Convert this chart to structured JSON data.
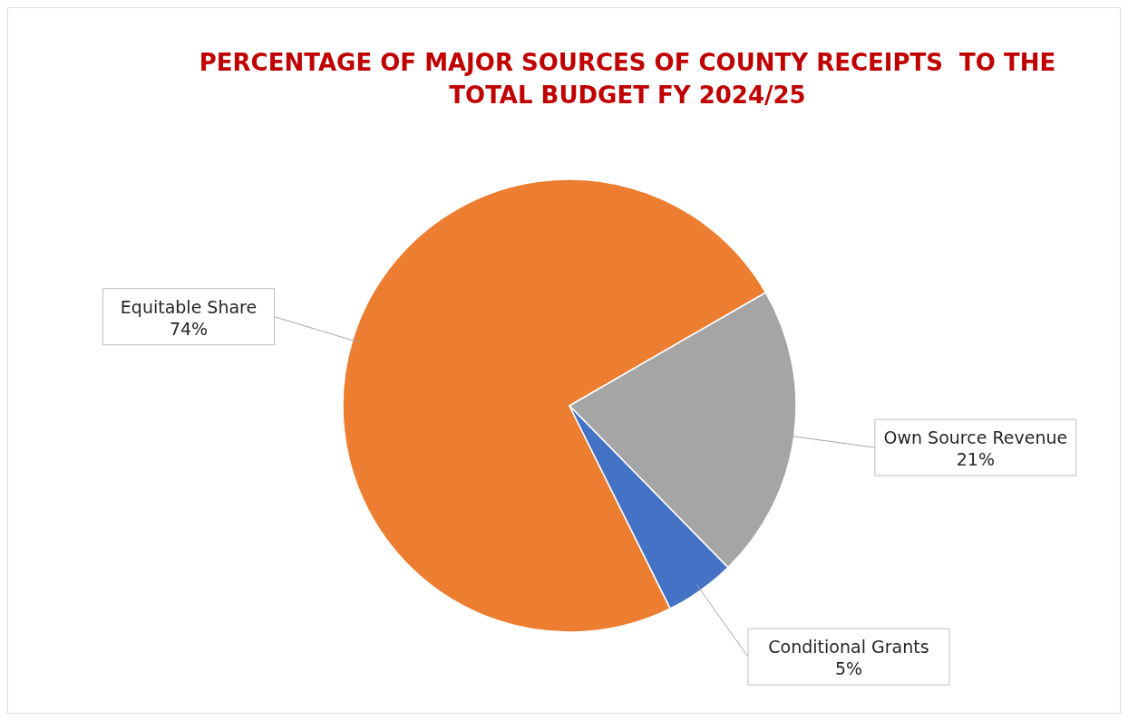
{
  "chart_data": {
    "type": "pie",
    "title": "PERCENTAGE OF MAJOR SOURCES OF COUNTY RECEIPTS  TO THE TOTAL BUDGET FY 2024/25",
    "categories": [
      "Equitable Share",
      "Own Source Revenue",
      "Conditional Grants"
    ],
    "values": [
      74,
      21,
      5
    ],
    "colors": [
      "#ed7d31",
      "#a5a5a5",
      "#4472c4"
    ],
    "value_labels": [
      "74%",
      "21%",
      "5%"
    ]
  }
}
